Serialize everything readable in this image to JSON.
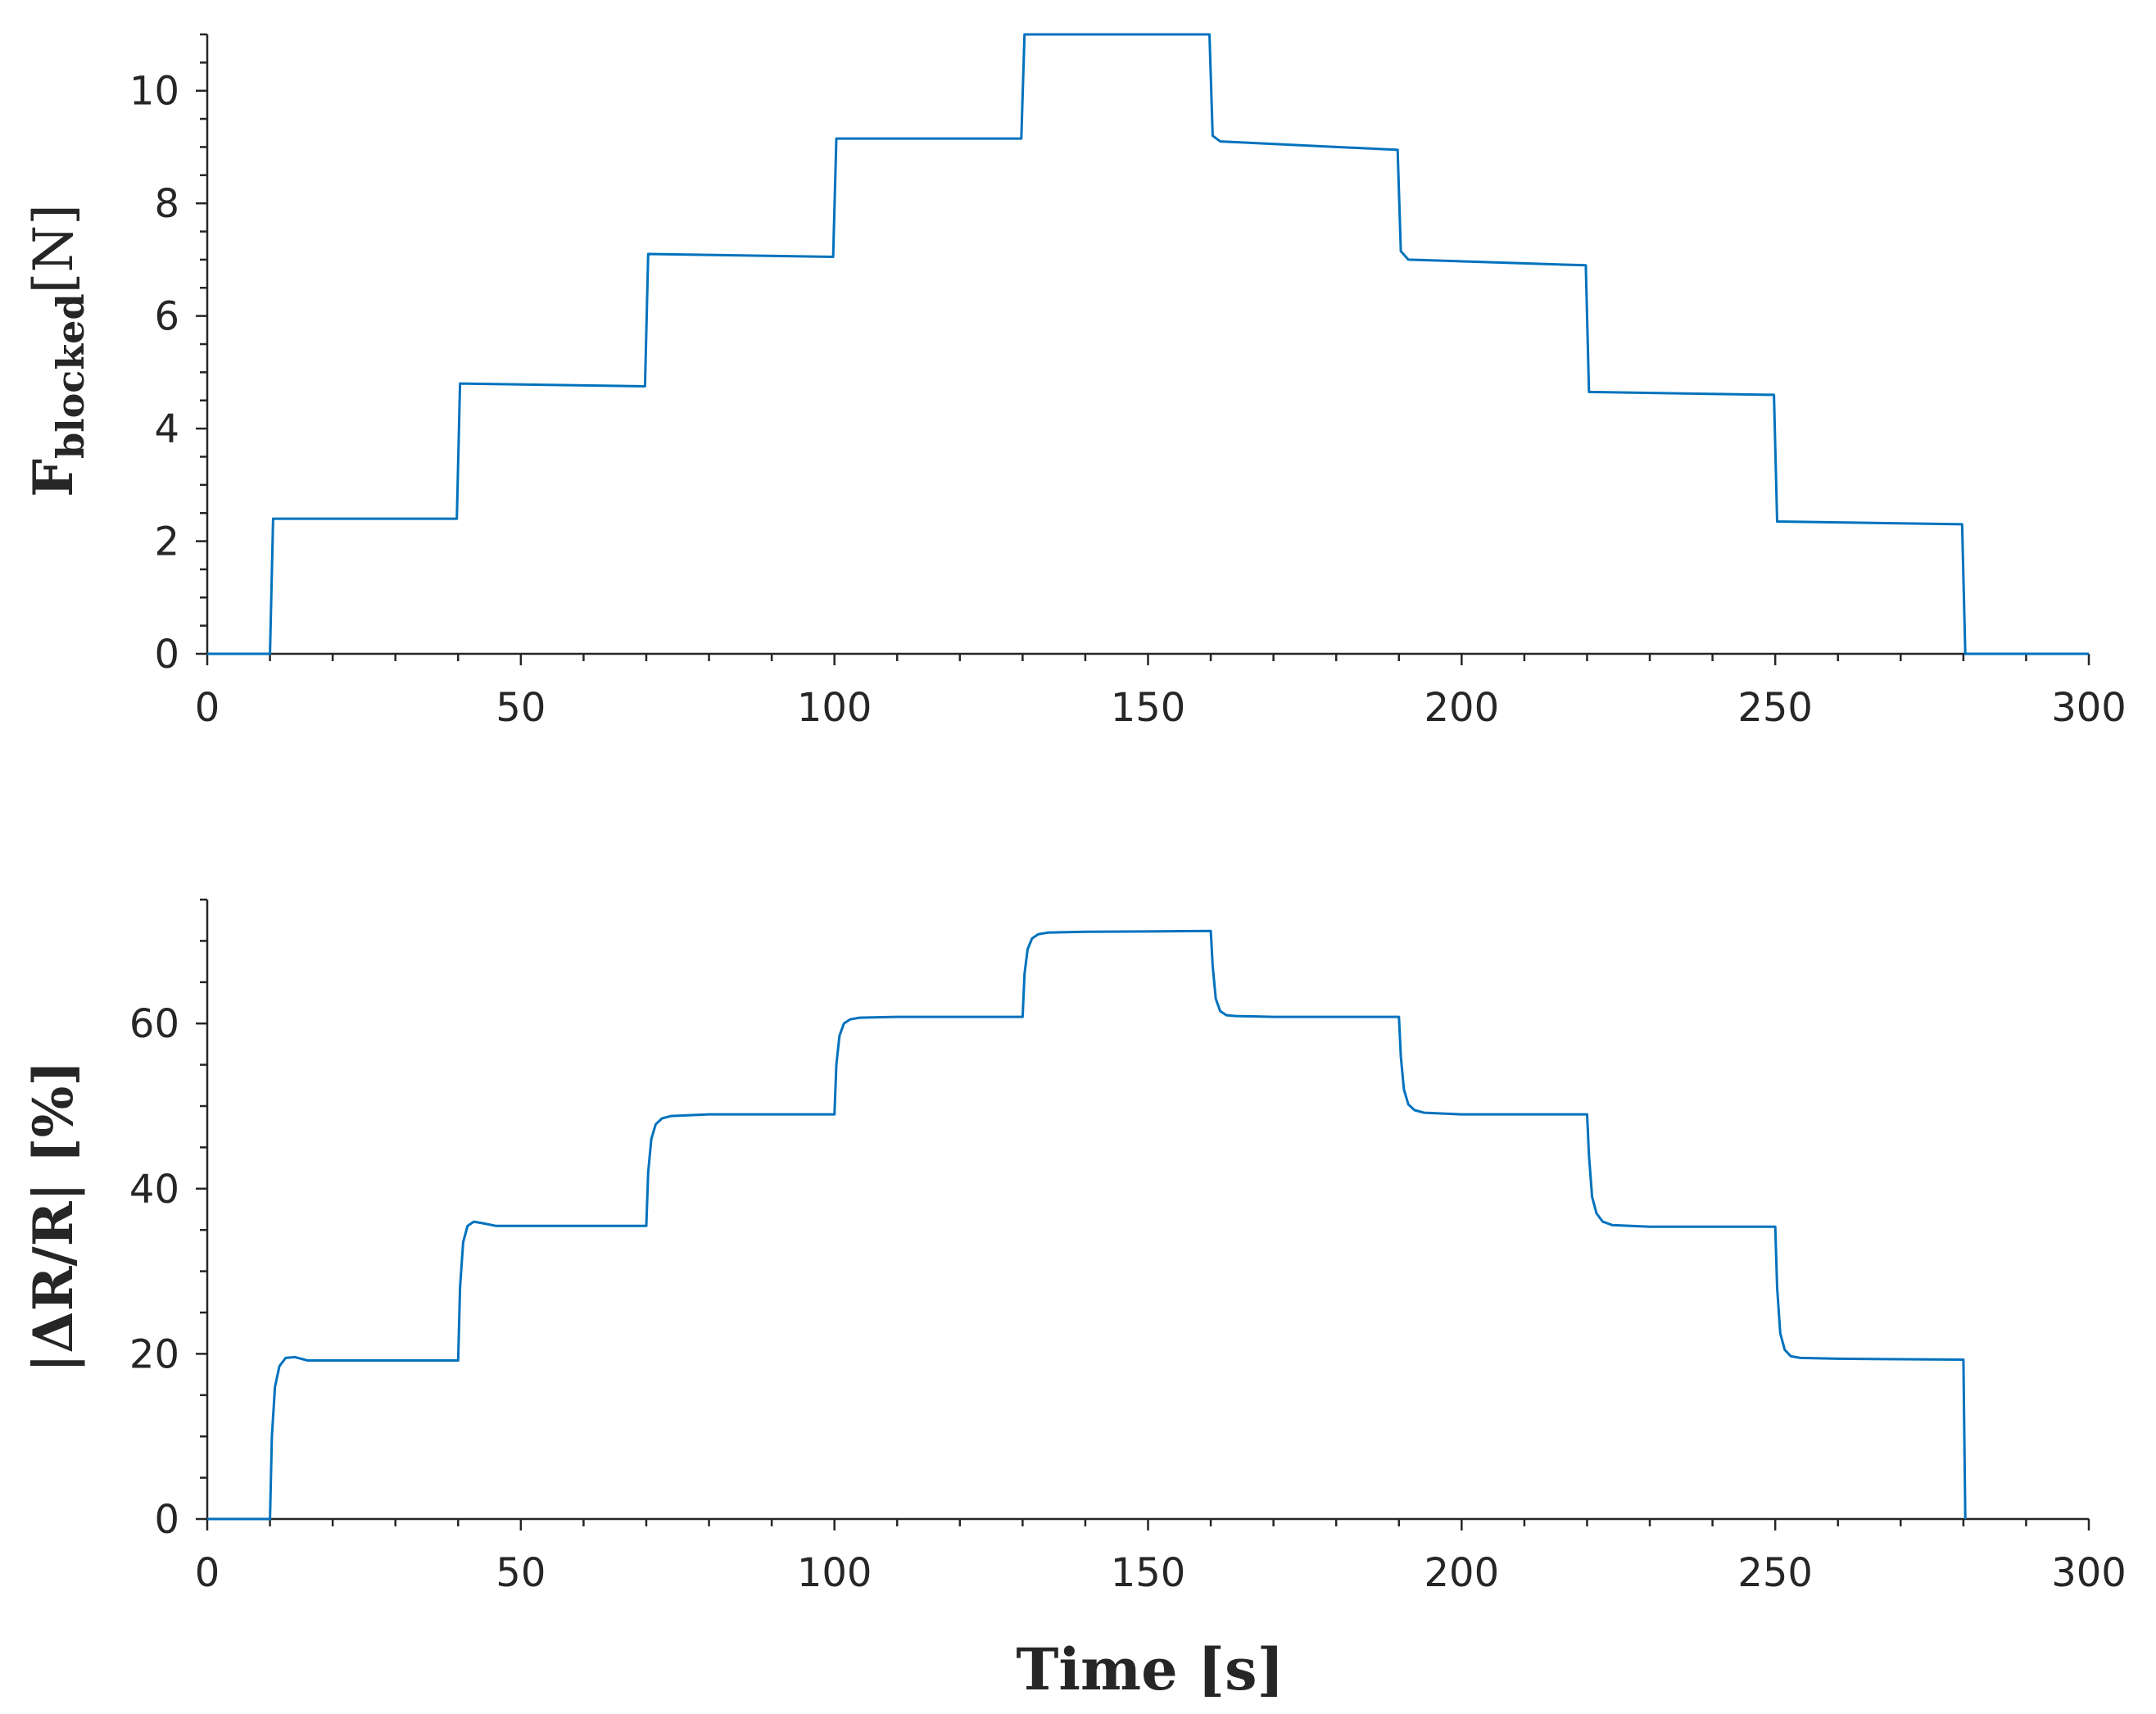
{
  "colors": {
    "series": "#0072BD",
    "axis": "#262626",
    "background": "#ffffff"
  },
  "chart_data": [
    {
      "type": "line",
      "ylabel_main": "F",
      "ylabel_sub": "blocked",
      "ylabel_unit": "[N]",
      "xlabel": "",
      "xlim": [
        0,
        300
      ],
      "ylim": [
        0,
        11
      ],
      "xticks": [
        0,
        50,
        100,
        150,
        200,
        250,
        300
      ],
      "yticks": [
        0,
        2,
        4,
        6,
        8,
        10
      ],
      "grid": false,
      "series": [
        {
          "x": [
            0,
            10,
            10.5,
            39.8,
            40.3,
            69.8,
            70.3,
            99.8,
            100.3,
            129.8,
            130.3,
            159.8,
            160.3,
            161.5,
            189.8,
            190.3,
            191.5,
            219.8,
            220.3,
            249.8,
            250.3,
            279.8,
            280.3,
            300
          ],
          "y": [
            0,
            0,
            2.4,
            2.4,
            4.8,
            4.75,
            7.1,
            7.05,
            9.15,
            9.15,
            11.0,
            11.0,
            9.2,
            9.1,
            8.95,
            7.15,
            7.0,
            6.9,
            4.65,
            4.6,
            2.35,
            2.3,
            0,
            0
          ]
        }
      ]
    },
    {
      "type": "line",
      "ylabel": "|ΔR/R| [%]",
      "xlabel": "Time [s]",
      "xlim": [
        0,
        300
      ],
      "ylim": [
        0,
        75
      ],
      "xticks": [
        0,
        50,
        100,
        150,
        200,
        250,
        300
      ],
      "yticks": [
        0,
        20,
        40,
        60
      ],
      "grid": false,
      "series": [
        {
          "x": [
            0,
            10,
            10.3,
            10.8,
            11.5,
            12.5,
            14,
            16,
            40,
            40.3,
            40.8,
            41.5,
            42.5,
            44,
            46,
            70,
            70.3,
            70.8,
            71.5,
            72.5,
            74,
            80,
            100,
            100.3,
            100.8,
            101.5,
            102.5,
            104,
            110,
            130,
            130.3,
            130.8,
            131.5,
            132.5,
            134,
            140,
            160,
            160.3,
            160.8,
            161.5,
            162.5,
            164,
            170,
            190,
            190.3,
            190.8,
            191.5,
            192.5,
            194,
            200,
            220,
            220.3,
            220.8,
            221.5,
            222.5,
            224,
            230,
            250,
            250.3,
            250.8,
            251.5,
            252.5,
            254,
            260,
            280,
            280.3
          ],
          "y": [
            0,
            0,
            10,
            16,
            18.5,
            19.5,
            19.6,
            19.2,
            19.2,
            28,
            33.5,
            35.5,
            36,
            35.8,
            35.5,
            35.5,
            42,
            46,
            47.8,
            48.5,
            48.8,
            49,
            49,
            55,
            58.5,
            60,
            60.5,
            60.7,
            60.8,
            60.8,
            66,
            69,
            70.3,
            70.8,
            71,
            71.1,
            71.2,
            67,
            63,
            61.5,
            61,
            60.9,
            60.8,
            60.8,
            56,
            52,
            50.2,
            49.5,
            49.2,
            49,
            49,
            44,
            39,
            37,
            36,
            35.6,
            35.4,
            35.4,
            28,
            22.5,
            20.5,
            19.7,
            19.5,
            19.4,
            19.3,
            0
          ]
        }
      ]
    }
  ]
}
